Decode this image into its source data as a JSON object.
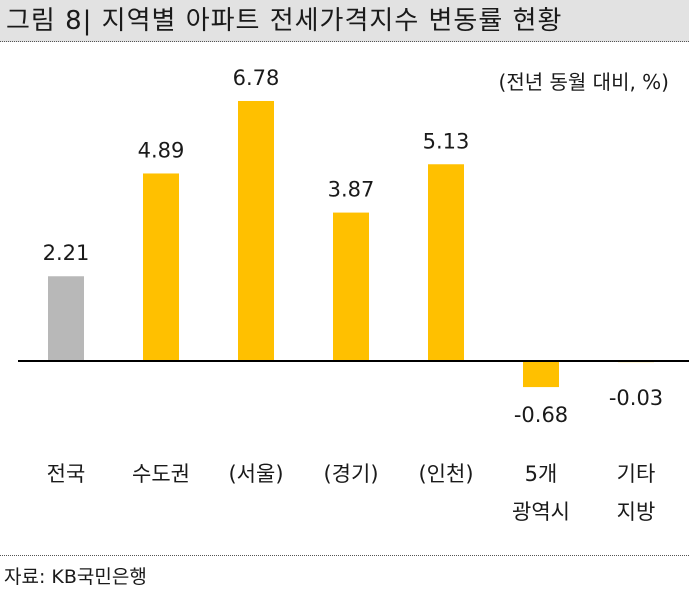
{
  "title": "그림 8| 지역별 아파트 전세가격지수 변동률 현황",
  "unit_label": "(전년 동월 대비, %)",
  "source": "자료: KB국민은행",
  "colors": {
    "highlight": "#b8b8b8",
    "bar": "#ffc000",
    "axis": "#000000"
  },
  "chart_data": {
    "type": "bar",
    "title": "그림 8| 지역별 아파트 전세가격지수 변동률 현황",
    "ylabel": "(전년 동월 대비, %)",
    "categories": [
      [
        "전국"
      ],
      [
        "수도권"
      ],
      [
        "(서울)"
      ],
      [
        "(경기)"
      ],
      [
        "(인천)"
      ],
      [
        "5개",
        "광역시"
      ],
      [
        "기타",
        "지방"
      ]
    ],
    "values": [
      2.21,
      4.89,
      6.78,
      3.87,
      5.13,
      -0.68,
      -0.03
    ],
    "value_labels": [
      "2.21",
      "4.89",
      "6.78",
      "3.87",
      "5.13",
      "-0.68",
      "-0.03"
    ],
    "ylim": [
      -1.5,
      7.5
    ],
    "grid": false,
    "legend": "none"
  }
}
